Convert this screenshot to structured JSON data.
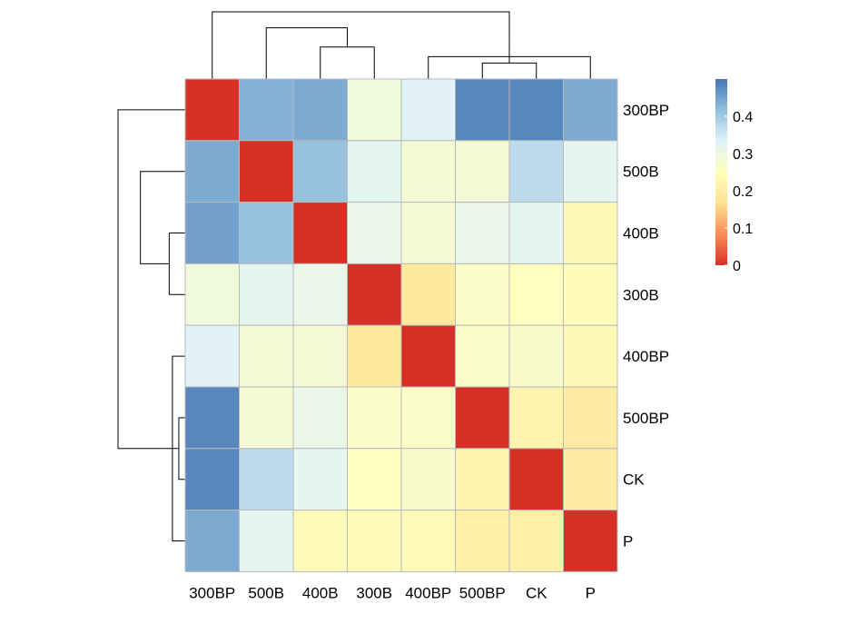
{
  "chart_data": {
    "type": "heatmap",
    "title": "",
    "row_labels": [
      "300BP",
      "500B",
      "400B",
      "300B",
      "400BP",
      "500BP",
      "CK",
      "P"
    ],
    "col_labels": [
      "300BP",
      "500B",
      "400B",
      "300B",
      "400BP",
      "500BP",
      "CK",
      "P"
    ],
    "values": [
      [
        0.0,
        0.43,
        0.44,
        0.29,
        0.33,
        0.48,
        0.48,
        0.44
      ],
      [
        0.44,
        0.0,
        0.41,
        0.32,
        0.28,
        0.28,
        0.37,
        0.32
      ],
      [
        0.45,
        0.41,
        0.0,
        0.31,
        0.28,
        0.31,
        0.32,
        0.23
      ],
      [
        0.29,
        0.32,
        0.31,
        0.0,
        0.19,
        0.26,
        0.25,
        0.24
      ],
      [
        0.33,
        0.28,
        0.28,
        0.19,
        0.0,
        0.26,
        0.27,
        0.23
      ],
      [
        0.48,
        0.28,
        0.31,
        0.26,
        0.26,
        0.0,
        0.22,
        0.2
      ],
      [
        0.48,
        0.37,
        0.32,
        0.25,
        0.27,
        0.22,
        0.0,
        0.2
      ],
      [
        0.44,
        0.32,
        0.24,
        0.24,
        0.24,
        0.21,
        0.21,
        0.0
      ]
    ],
    "color_scale": {
      "min": 0,
      "max": 0.5,
      "stops": [
        "#d73027",
        "#fc8d59",
        "#fee090",
        "#ffffbf",
        "#e0f3f8",
        "#91bfdb",
        "#4575b4"
      ]
    },
    "legend": {
      "placement": "top-right",
      "ticks": [
        0,
        0.1,
        0.2,
        0.3,
        0.4
      ],
      "tick_labels": [
        "0",
        "0.1",
        "0.2",
        "0.3",
        "0.4"
      ]
    },
    "grid": true,
    "col_dendrogram": [
      [
        6,
        7
      ],
      [
        5,
        8
      ],
      [
        3,
        4
      ],
      [
        9,
        10
      ],
      [
        2,
        11
      ],
      [
        1,
        12
      ]
    ],
    "col_dendrogram_heights": [
      0.1,
      0.14,
      0.2,
      0.24,
      0.32,
      0.42
    ],
    "row_dendrogram": [
      [
        6,
        7
      ],
      [
        5,
        8
      ],
      [
        3,
        4
      ],
      [
        9,
        10
      ],
      [
        2,
        11
      ],
      [
        1,
        12
      ]
    ],
    "row_dendrogram_heights": [
      0.04,
      0.08,
      0.1,
      0.12,
      0.28,
      0.42
    ]
  }
}
